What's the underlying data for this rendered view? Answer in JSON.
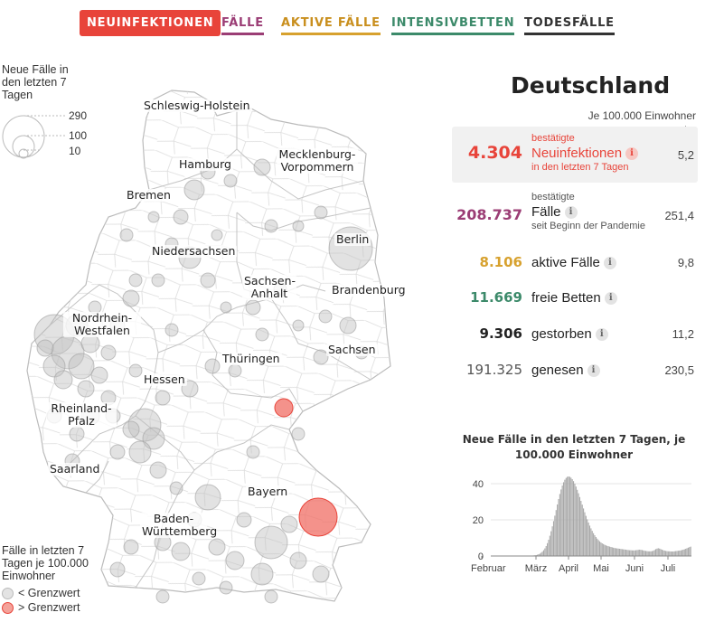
{
  "tabs": [
    {
      "label": "NEUINFEKTIONEN",
      "color": "#e8443a",
      "active": true
    },
    {
      "label": "FÄLLE",
      "color": "#9b3d75",
      "active": false
    },
    {
      "label": "AKTIVE FÄLLE",
      "color": "#d7a12e",
      "active": false
    },
    {
      "label": "INTENSIVBETTEN",
      "color": "#3c8a6a",
      "active": false
    },
    {
      "label": "TODESFÄLLE",
      "color": "#333333",
      "active": false
    }
  ],
  "legend_size": {
    "title": "Neue Fälle in den letzten 7 Tagen",
    "values": [
      "290",
      "100",
      "10"
    ]
  },
  "legend_color": {
    "title": "Fälle in letzten 7 Tagen je 100.000 Einwohner",
    "below": "< Grenzwert",
    "above": "> Grenzwert"
  },
  "map_labels": {
    "sh": "Schleswig-Holstein",
    "hamburg": "Hamburg",
    "mv": "Mecklenburg-Vorpommern",
    "bremen": "Bremen",
    "niedersachsen": "Niedersachsen",
    "berlin": "Berlin",
    "brandenburg": "Brandenburg",
    "sachsen_anhalt": "Sachsen-Anhalt",
    "nrw": "Nordrhein-Westfalen",
    "sachsen": "Sachsen",
    "thueringen": "Thüringen",
    "hessen": "Hessen",
    "rlp": "Rheinland-Pfalz",
    "saarland": "Saarland",
    "bayern": "Bayern",
    "bw": "Baden-Württemberg"
  },
  "panel": {
    "country": "Deutschland",
    "per_100k": "Je 100.000 Einwohner",
    "arrow": "↓",
    "stats": {
      "neu": {
        "number": "4.304",
        "pre": "bestätigte",
        "main": "Neuinfektionen",
        "post": "in den letzten 7 Tagen",
        "rate": "5,2",
        "color": "#e8443a"
      },
      "faelle": {
        "number": "208.737",
        "pre": "bestätigte",
        "main": "Fälle",
        "post": "seit Beginn der Pandemie",
        "rate": "251,4",
        "color": "#9b3d75"
      },
      "aktiv": {
        "number": "8.106",
        "main": "aktive Fälle",
        "rate": "9,8",
        "color": "#d7a12e"
      },
      "betten": {
        "number": "11.669",
        "main": "freie Betten",
        "rate": "",
        "color": "#3c8a6a"
      },
      "gestorben": {
        "number": "9.306",
        "main": "gestorben",
        "rate": "11,2",
        "color": "#222222"
      },
      "genesen": {
        "number": "191.325",
        "main": "genesen",
        "rate": "230,5",
        "color": "#555555"
      }
    },
    "info_icon": "i"
  },
  "chart_data": {
    "type": "bar",
    "title": "Neue Fälle in den letzten 7 Tagen, je 100.000 Einwohner",
    "ylim": [
      0,
      45
    ],
    "yticks": [
      0,
      20,
      40
    ],
    "months": [
      "Februar",
      "März",
      "April",
      "Mai",
      "Juni",
      "Juli"
    ],
    "values": [
      0,
      0,
      0,
      0,
      0,
      0,
      0,
      0,
      0,
      0,
      0,
      0,
      0,
      0,
      0,
      0,
      0,
      0,
      0,
      0,
      0,
      0,
      0,
      0,
      0,
      0,
      0,
      0,
      0,
      0.1,
      0.1,
      0.1,
      0.2,
      0.2,
      0.3,
      0.4,
      0.5,
      0.7,
      1,
      1.3,
      1.8,
      2.4,
      3.2,
      4.2,
      5.5,
      7.1,
      9,
      11.2,
      13.7,
      16.4,
      19.3,
      22.3,
      25.4,
      28.5,
      31.5,
      34.3,
      36.8,
      39,
      40.8,
      42.2,
      43.2,
      43.8,
      44,
      43.8,
      43.3,
      42.5,
      41.4,
      40,
      38.4,
      36.6,
      34.7,
      32.6,
      30.5,
      28.4,
      26.3,
      24.2,
      22.2,
      20.3,
      18.5,
      16.8,
      15.3,
      13.9,
      12.6,
      11.5,
      10.5,
      9.6,
      8.8,
      8.1,
      7.5,
      7,
      6.6,
      6.2,
      5.9,
      5.6,
      5.4,
      5.2,
      5,
      4.8,
      4.6,
      4.4,
      4.3,
      4.2,
      4.1,
      4,
      3.9,
      3.8,
      3.7,
      3.6,
      3.5,
      3.4,
      3.3,
      3.2,
      3.2,
      3.1,
      3.1,
      3.1,
      3.2,
      3.3,
      3.4,
      3.5,
      3.4,
      3.3,
      3.1,
      2.9,
      2.8,
      2.7,
      2.6,
      2.6,
      2.6,
      2.7,
      2.9,
      3.3,
      3.8,
      4.1,
      4.3,
      4.1,
      3.8,
      3.5,
      3.2,
      3,
      2.8,
      2.7,
      2.6,
      2.6,
      2.5,
      2.5,
      2.5,
      2.6,
      2.7,
      2.8,
      2.9,
      3,
      3.1,
      3.3,
      3.5,
      3.7,
      4,
      4.3,
      4.6,
      4.9,
      5.2
    ]
  }
}
